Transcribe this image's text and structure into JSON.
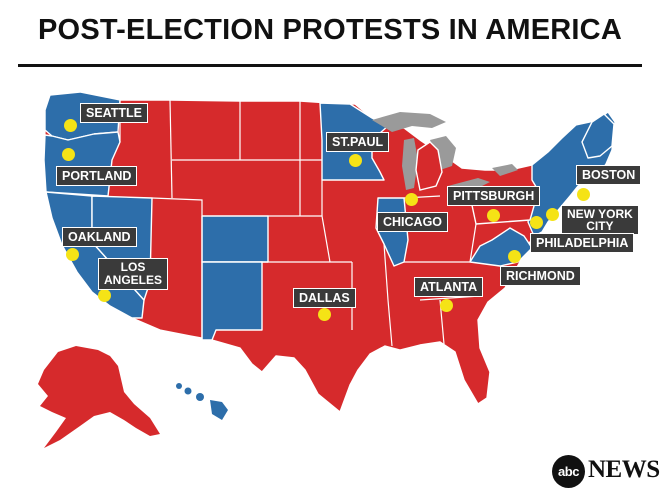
{
  "title": "POST-ELECTION PROTESTS IN AMERICA",
  "colors": {
    "red_states": "#d62a2c",
    "blue_states": "#2d6eaa",
    "lakes": "#9a9a9a",
    "dots": "#f5e316",
    "labels": "#3a3a3a"
  },
  "cities": [
    {
      "id": "seattle",
      "name": "SEATTLE"
    },
    {
      "id": "portland",
      "name": "PORTLAND"
    },
    {
      "id": "oakland",
      "name": "OAKLAND"
    },
    {
      "id": "los_angeles",
      "name": "LOS ANGELES",
      "lines": [
        "LOS",
        "ANGELES"
      ]
    },
    {
      "id": "st_paul",
      "name": "ST.PAUL"
    },
    {
      "id": "chicago",
      "name": "CHICAGO"
    },
    {
      "id": "dallas",
      "name": "DALLAS"
    },
    {
      "id": "atlanta",
      "name": "ATLANTA"
    },
    {
      "id": "pittsburgh",
      "name": "PITTSBURGH"
    },
    {
      "id": "boston",
      "name": "BOSTON"
    },
    {
      "id": "new_york",
      "name": "NEW YORK CITY",
      "lines": [
        "NEW YORK",
        "CITY"
      ]
    },
    {
      "id": "philadelphia",
      "name": "PHILADELPHIA"
    },
    {
      "id": "richmond",
      "name": "RICHMOND"
    }
  ],
  "logo": {
    "mark": "abc",
    "text": "NEWS"
  }
}
